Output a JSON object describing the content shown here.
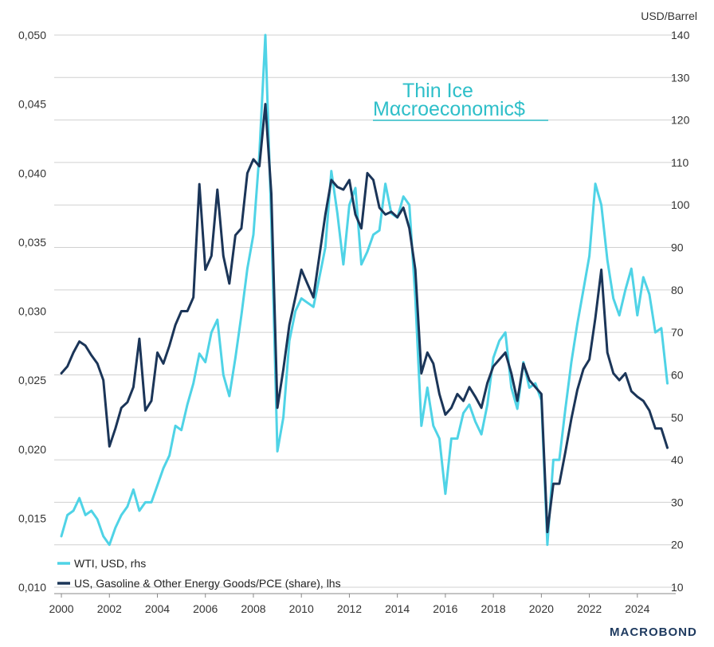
{
  "chart_data": {
    "type": "line",
    "title": "",
    "left_axis": {
      "label": "",
      "ylim": [
        0.01,
        0.05
      ],
      "ticks": [
        "0,010",
        "0,015",
        "0,020",
        "0,025",
        "0,030",
        "0,035",
        "0,040",
        "0,045",
        "0,050"
      ]
    },
    "right_axis": {
      "label": "USD/Barrel",
      "ylim": [
        10,
        140
      ],
      "ticks": [
        "10",
        "20",
        "30",
        "40",
        "50",
        "60",
        "70",
        "80",
        "90",
        "100",
        "110",
        "120",
        "130",
        "140"
      ]
    },
    "x_axis": {
      "xlim": [
        1999.7,
        2025.6
      ],
      "ticks": [
        "2000",
        "2002",
        "2004",
        "2006",
        "2008",
        "2010",
        "2012",
        "2014",
        "2016",
        "2018",
        "2020",
        "2022",
        "2024"
      ]
    },
    "grid": "horizontal",
    "legend_position": "bottom-left",
    "series": [
      {
        "name": "WTI, USD, rhs",
        "axis": "right",
        "color": "#4fd3e6",
        "points": [
          [
            2000.0,
            22
          ],
          [
            2000.25,
            27
          ],
          [
            2000.5,
            28
          ],
          [
            2000.75,
            31
          ],
          [
            2001.0,
            27
          ],
          [
            2001.25,
            28
          ],
          [
            2001.5,
            26
          ],
          [
            2001.75,
            22
          ],
          [
            2002.0,
            20
          ],
          [
            2002.25,
            24
          ],
          [
            2002.5,
            27
          ],
          [
            2002.75,
            29
          ],
          [
            2003.0,
            33
          ],
          [
            2003.25,
            28
          ],
          [
            2003.5,
            30
          ],
          [
            2003.75,
            30
          ],
          [
            2004.0,
            34
          ],
          [
            2004.25,
            38
          ],
          [
            2004.5,
            41
          ],
          [
            2004.75,
            48
          ],
          [
            2005.0,
            47
          ],
          [
            2005.25,
            53
          ],
          [
            2005.5,
            58
          ],
          [
            2005.75,
            65
          ],
          [
            2006.0,
            63
          ],
          [
            2006.25,
            70
          ],
          [
            2006.5,
            73
          ],
          [
            2006.75,
            60
          ],
          [
            2007.0,
            55
          ],
          [
            2007.25,
            64
          ],
          [
            2007.5,
            74
          ],
          [
            2007.75,
            85
          ],
          [
            2008.0,
            93
          ],
          [
            2008.25,
            112
          ],
          [
            2008.5,
            140
          ],
          [
            2008.75,
            96
          ],
          [
            2009.0,
            42
          ],
          [
            2009.25,
            50
          ],
          [
            2009.5,
            68
          ],
          [
            2009.75,
            75
          ],
          [
            2010.0,
            78
          ],
          [
            2010.25,
            77
          ],
          [
            2010.5,
            76
          ],
          [
            2010.75,
            83
          ],
          [
            2011.0,
            90
          ],
          [
            2011.25,
            108
          ],
          [
            2011.5,
            98
          ],
          [
            2011.75,
            86
          ],
          [
            2012.0,
            100
          ],
          [
            2012.25,
            104
          ],
          [
            2012.5,
            86
          ],
          [
            2012.75,
            89
          ],
          [
            2013.0,
            93
          ],
          [
            2013.25,
            94
          ],
          [
            2013.5,
            105
          ],
          [
            2013.75,
            98
          ],
          [
            2014.0,
            97
          ],
          [
            2014.25,
            102
          ],
          [
            2014.5,
            100
          ],
          [
            2014.75,
            78
          ],
          [
            2015.0,
            48
          ],
          [
            2015.25,
            57
          ],
          [
            2015.5,
            48
          ],
          [
            2015.75,
            45
          ],
          [
            2016.0,
            32
          ],
          [
            2016.25,
            45
          ],
          [
            2016.5,
            45
          ],
          [
            2016.75,
            51
          ],
          [
            2017.0,
            53
          ],
          [
            2017.25,
            49
          ],
          [
            2017.5,
            46
          ],
          [
            2017.75,
            53
          ],
          [
            2018.0,
            64
          ],
          [
            2018.25,
            68
          ],
          [
            2018.5,
            70
          ],
          [
            2018.75,
            57
          ],
          [
            2019.0,
            52
          ],
          [
            2019.25,
            63
          ],
          [
            2019.5,
            57
          ],
          [
            2019.75,
            58
          ],
          [
            2020.0,
            54
          ],
          [
            2020.25,
            20
          ],
          [
            2020.5,
            40
          ],
          [
            2020.75,
            40
          ],
          [
            2021.0,
            52
          ],
          [
            2021.25,
            63
          ],
          [
            2021.5,
            72
          ],
          [
            2021.75,
            80
          ],
          [
            2022.0,
            88
          ],
          [
            2022.25,
            105
          ],
          [
            2022.5,
            100
          ],
          [
            2022.75,
            87
          ],
          [
            2023.0,
            78
          ],
          [
            2023.25,
            74
          ],
          [
            2023.5,
            80
          ],
          [
            2023.75,
            85
          ],
          [
            2024.0,
            74
          ],
          [
            2024.25,
            83
          ],
          [
            2024.5,
            79
          ],
          [
            2024.75,
            70
          ],
          [
            2025.0,
            71
          ],
          [
            2025.25,
            58
          ]
        ]
      },
      {
        "name": "US, Gasoline & Other Energy Goods/PCE (share), lhs",
        "axis": "left",
        "color": "#1b3558",
        "points": [
          [
            2000.0,
            0.0255
          ],
          [
            2000.25,
            0.026
          ],
          [
            2000.5,
            0.027
          ],
          [
            2000.75,
            0.0278
          ],
          [
            2001.0,
            0.0275
          ],
          [
            2001.25,
            0.0268
          ],
          [
            2001.5,
            0.0262
          ],
          [
            2001.75,
            0.025
          ],
          [
            2002.0,
            0.0202
          ],
          [
            2002.25,
            0.0215
          ],
          [
            2002.5,
            0.023
          ],
          [
            2002.75,
            0.0234
          ],
          [
            2003.0,
            0.0245
          ],
          [
            2003.25,
            0.028
          ],
          [
            2003.5,
            0.0228
          ],
          [
            2003.75,
            0.0235
          ],
          [
            2004.0,
            0.027
          ],
          [
            2004.25,
            0.0262
          ],
          [
            2004.5,
            0.0275
          ],
          [
            2004.75,
            0.029
          ],
          [
            2005.0,
            0.03
          ],
          [
            2005.25,
            0.03
          ],
          [
            2005.5,
            0.031
          ],
          [
            2005.75,
            0.0392
          ],
          [
            2006.0,
            0.033
          ],
          [
            2006.25,
            0.034
          ],
          [
            2006.5,
            0.0388
          ],
          [
            2006.75,
            0.034
          ],
          [
            2007.0,
            0.032
          ],
          [
            2007.25,
            0.0355
          ],
          [
            2007.5,
            0.036
          ],
          [
            2007.75,
            0.04
          ],
          [
            2008.0,
            0.041
          ],
          [
            2008.25,
            0.0405
          ],
          [
            2008.5,
            0.045
          ],
          [
            2008.75,
            0.0385
          ],
          [
            2009.0,
            0.023
          ],
          [
            2009.25,
            0.0258
          ],
          [
            2009.5,
            0.029
          ],
          [
            2009.75,
            0.031
          ],
          [
            2010.0,
            0.033
          ],
          [
            2010.25,
            0.032
          ],
          [
            2010.5,
            0.031
          ],
          [
            2010.75,
            0.034
          ],
          [
            2011.0,
            0.037
          ],
          [
            2011.25,
            0.0395
          ],
          [
            2011.5,
            0.039
          ],
          [
            2011.75,
            0.0388
          ],
          [
            2012.0,
            0.0395
          ],
          [
            2012.25,
            0.037
          ],
          [
            2012.5,
            0.036
          ],
          [
            2012.75,
            0.04
          ],
          [
            2013.0,
            0.0395
          ],
          [
            2013.25,
            0.0375
          ],
          [
            2013.5,
            0.037
          ],
          [
            2013.75,
            0.0372
          ],
          [
            2014.0,
            0.0368
          ],
          [
            2014.25,
            0.0375
          ],
          [
            2014.5,
            0.036
          ],
          [
            2014.75,
            0.033
          ],
          [
            2015.0,
            0.0255
          ],
          [
            2015.25,
            0.027
          ],
          [
            2015.5,
            0.0262
          ],
          [
            2015.75,
            0.024
          ],
          [
            2016.0,
            0.0225
          ],
          [
            2016.25,
            0.023
          ],
          [
            2016.5,
            0.024
          ],
          [
            2016.75,
            0.0235
          ],
          [
            2017.0,
            0.0245
          ],
          [
            2017.25,
            0.0238
          ],
          [
            2017.5,
            0.023
          ],
          [
            2017.75,
            0.0248
          ],
          [
            2018.0,
            0.026
          ],
          [
            2018.25,
            0.0265
          ],
          [
            2018.5,
            0.027
          ],
          [
            2018.75,
            0.0255
          ],
          [
            2019.0,
            0.0235
          ],
          [
            2019.25,
            0.0262
          ],
          [
            2019.5,
            0.025
          ],
          [
            2019.75,
            0.0245
          ],
          [
            2020.0,
            0.024
          ],
          [
            2020.25,
            0.014
          ],
          [
            2020.5,
            0.0175
          ],
          [
            2020.75,
            0.0175
          ],
          [
            2021.0,
            0.0198
          ],
          [
            2021.25,
            0.0222
          ],
          [
            2021.5,
            0.0243
          ],
          [
            2021.75,
            0.0258
          ],
          [
            2022.0,
            0.0265
          ],
          [
            2022.25,
            0.0295
          ],
          [
            2022.5,
            0.033
          ],
          [
            2022.75,
            0.027
          ],
          [
            2023.0,
            0.0255
          ],
          [
            2023.25,
            0.025
          ],
          [
            2023.5,
            0.0255
          ],
          [
            2023.75,
            0.0242
          ],
          [
            2024.0,
            0.0238
          ],
          [
            2024.25,
            0.0235
          ],
          [
            2024.5,
            0.0228
          ],
          [
            2024.75,
            0.0215
          ],
          [
            2025.0,
            0.0215
          ],
          [
            2025.25,
            0.0201
          ]
        ]
      }
    ],
    "legend": [
      {
        "label": "WTI, USD, rhs",
        "color": "#4fd3e6"
      },
      {
        "label": "US, Gasoline & Other Energy Goods/PCE (share), lhs",
        "color": "#1b3558"
      }
    ]
  },
  "watermark": {
    "line1": "Thin Ice",
    "line2": "Mαcroeconomic$"
  },
  "brand": "MACROBOND"
}
